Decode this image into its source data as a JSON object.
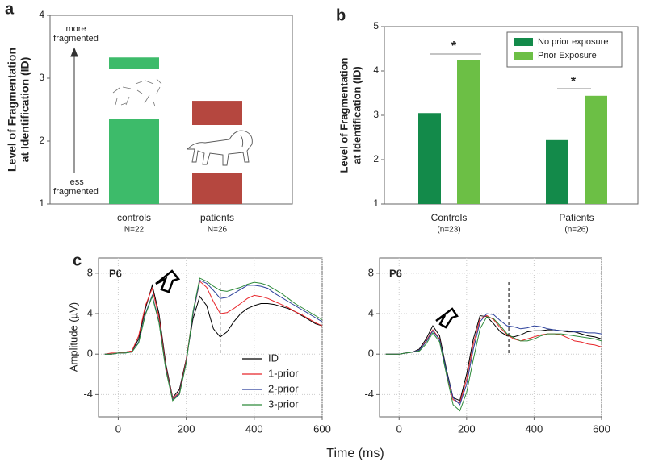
{
  "chart_data": [
    {
      "type": "bar",
      "panel_label": "a",
      "ylabel": [
        "Level of Fragmentation",
        "at Identification (ID)"
      ],
      "categories": [
        "controls",
        "patients"
      ],
      "sublabels": [
        "N=22",
        "N=26"
      ],
      "values": [
        3.33,
        2.64
      ],
      "colors": [
        "#3dbb6a",
        "#b5473f"
      ],
      "annotations": [
        [
          "more",
          "fragmented"
        ],
        [
          "less",
          "fragmented"
        ]
      ],
      "ylim": [
        1,
        4
      ],
      "yticks": [
        1,
        2,
        3,
        4
      ]
    },
    {
      "type": "bar",
      "panel_label": "b",
      "ylabel": [
        "Level of Fragmentation",
        "at Identification (ID)"
      ],
      "categories": [
        "Controls",
        "Patients"
      ],
      "sublabels": [
        "(n=23)",
        "(n=26)"
      ],
      "series": [
        {
          "name": "No prior exposure",
          "color": "#138a4a",
          "values": [
            3.05,
            2.44
          ]
        },
        {
          "name": "Prior Exposure",
          "color": "#6cbf45",
          "values": [
            4.25,
            3.44
          ]
        }
      ],
      "annotations": [
        "*",
        "*"
      ],
      "ylim": [
        1,
        5
      ],
      "yticks": [
        1,
        2,
        3,
        4,
        5
      ]
    },
    {
      "type": "line",
      "panel_label": "c",
      "annotations": [
        "P6"
      ],
      "ylabel": "Amplitude (µV)",
      "xlabel": "Time (ms)",
      "x": [
        -40,
        -20,
        0,
        20,
        40,
        60,
        80,
        100,
        120,
        140,
        160,
        180,
        200,
        220,
        240,
        260,
        280,
        300,
        320,
        340,
        360,
        380,
        400,
        420,
        440,
        460,
        480,
        500,
        520,
        540,
        560,
        580,
        600
      ],
      "series": [
        {
          "name": "ID",
          "color": "#000000",
          "values": [
            0,
            0,
            0.1,
            0.2,
            0.3,
            1.5,
            4.5,
            6.8,
            4,
            -1,
            -4.3,
            -3.5,
            -0.5,
            3.5,
            5.7,
            4.8,
            2.5,
            1.7,
            2.2,
            3.2,
            4,
            4.5,
            4.8,
            5,
            5,
            4.9,
            4.7,
            4.5,
            4.2,
            3.8,
            3.4,
            3,
            2.8
          ]
        },
        {
          "name": "1-prior",
          "color": "#e8262b",
          "values": [
            0,
            0.1,
            0.1,
            0.2,
            0.3,
            1.8,
            4.8,
            6.5,
            3.6,
            -1.3,
            -4.4,
            -3.8,
            -0.6,
            4,
            7.2,
            6.6,
            5.2,
            4,
            4.1,
            4.5,
            5,
            5.5,
            5.8,
            5.7,
            5.5,
            5.2,
            4.9,
            4.6,
            4.2,
            3.9,
            3.5,
            3.1,
            2.8
          ]
        },
        {
          "name": "2-prior",
          "color": "#2a3f9a",
          "values": [
            0,
            0,
            0.1,
            0.1,
            0.2,
            1.2,
            4,
            5.8,
            3.2,
            -1.5,
            -4.5,
            -3.9,
            -0.8,
            4,
            7.3,
            7,
            6.3,
            5.5,
            5.6,
            6,
            6.4,
            6.8,
            6.8,
            6.7,
            6.5,
            6,
            5.6,
            5.2,
            4.8,
            4.4,
            4,
            3.6,
            3.2
          ]
        },
        {
          "name": "3-prior",
          "color": "#2e8b3a",
          "values": [
            0,
            0,
            0.1,
            0.1,
            0.2,
            1.1,
            3.9,
            5.7,
            3.1,
            -1.6,
            -4.6,
            -4,
            -0.9,
            4.2,
            7.5,
            7.2,
            6.7,
            6.3,
            6.2,
            6.4,
            6.6,
            6.9,
            7.1,
            7,
            6.8,
            6.4,
            6,
            5.5,
            5,
            4.6,
            4.2,
            3.8,
            3.4
          ]
        }
      ],
      "vline": 300,
      "grid": true,
      "xlim": [
        -58,
        600
      ],
      "xticks": [
        0,
        200,
        400,
        600
      ],
      "ylim": [
        -6.2,
        9.5
      ],
      "yticks": [
        -4,
        0,
        4,
        8
      ]
    },
    {
      "type": "line",
      "annotations": [
        "P6"
      ],
      "x": [
        -40,
        -20,
        0,
        20,
        40,
        60,
        80,
        100,
        120,
        140,
        160,
        180,
        200,
        220,
        240,
        260,
        280,
        300,
        320,
        340,
        360,
        380,
        400,
        420,
        440,
        460,
        480,
        500,
        520,
        540,
        560,
        580,
        600
      ],
      "series": [
        {
          "color": "#000000",
          "values": [
            0,
            0,
            0,
            0.1,
            0.2,
            0.5,
            1.5,
            2.8,
            1.8,
            -1.5,
            -4.3,
            -4.6,
            -2,
            1.5,
            3.8,
            3.7,
            3,
            2.2,
            1.8,
            1.7,
            1.9,
            2.2,
            2.3,
            2.3,
            2.4,
            2.4,
            2.3,
            2.2,
            2.2,
            2,
            1.8,
            1.7,
            1.5
          ]
        },
        {
          "color": "#e8262b",
          "values": [
            0,
            0,
            0,
            0.1,
            0.2,
            0.4,
            1.3,
            2.4,
            1.5,
            -1.8,
            -4.5,
            -4.8,
            -2.5,
            1,
            3.5,
            3.8,
            3.4,
            2.6,
            1.9,
            1.5,
            1.3,
            1.5,
            1.7,
            1.9,
            2,
            2,
            1.9,
            1.6,
            1.3,
            1.2,
            1,
            0.9,
            0.7
          ]
        },
        {
          "color": "#2a3f9a",
          "values": [
            0,
            0,
            0,
            0.1,
            0.2,
            0.4,
            1.2,
            2.3,
            1.4,
            -1.7,
            -4.3,
            -5,
            -3,
            0.5,
            3.2,
            4,
            3.9,
            3.3,
            2.8,
            2.7,
            2.5,
            2.6,
            2.8,
            2.7,
            2.5,
            2.4,
            2.3,
            2.3,
            2.2,
            2.2,
            2.1,
            2.1,
            2
          ]
        },
        {
          "color": "#2e8b3a",
          "values": [
            0,
            0,
            0,
            0.1,
            0.2,
            0.3,
            1,
            2.1,
            1.2,
            -2,
            -5,
            -5.6,
            -3.8,
            -0.5,
            2.5,
            3.7,
            3.5,
            2.8,
            2,
            1.6,
            1.3,
            1.3,
            1.5,
            1.8,
            2,
            2,
            2,
            1.9,
            1.8,
            1.7,
            1.6,
            1.5,
            1.3
          ]
        }
      ],
      "vline": 325,
      "grid": true,
      "xlim": [
        -58,
        600
      ],
      "xticks": [
        0,
        200,
        400,
        600
      ],
      "ylim": [
        -6.2,
        9.5
      ],
      "yticks": [
        -4,
        0,
        4,
        8
      ]
    }
  ]
}
